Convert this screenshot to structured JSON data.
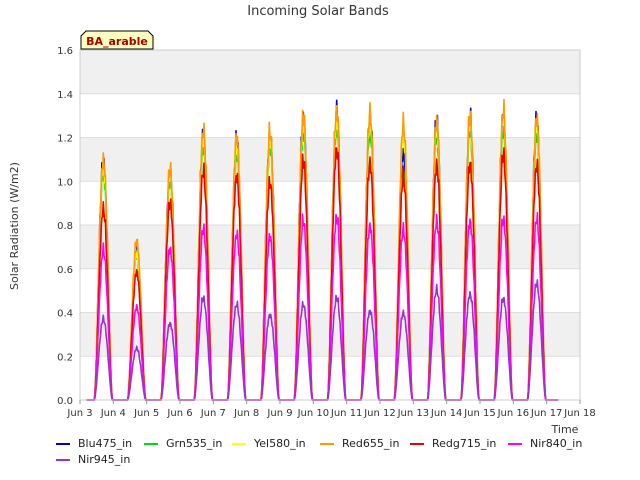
{
  "chart_data": {
    "type": "line",
    "title": "Incoming Solar Bands",
    "xlabel": "Time",
    "ylabel": "Solar Radiation (W/m2)",
    "site_label": "BA_arable",
    "xlim": [
      3,
      18
    ],
    "ylim": [
      0,
      1.6
    ],
    "x_ticks": [
      3,
      4,
      5,
      6,
      7,
      8,
      9,
      10,
      11,
      12,
      13,
      14,
      15,
      16,
      17,
      18
    ],
    "x_tick_labels": [
      "Jun 3",
      "Jun 4",
      "Jun 5",
      "Jun 6",
      "Jun 7",
      "Jun 8",
      "Jun 9",
      "Jun 10",
      "Jun 11",
      "Jun 12",
      "Jun 13",
      "Jun 14",
      "Jun 15",
      "Jun 16",
      "Jun 17",
      "Jun 18"
    ],
    "y_ticks": [
      0.0,
      0.2,
      0.4,
      0.6,
      0.8,
      1.0,
      1.2,
      1.4,
      1.6
    ],
    "y_tick_labels": [
      "0.0",
      "0.2",
      "0.4",
      "0.6",
      "0.8",
      "1.0",
      "1.2",
      "1.4",
      "1.6"
    ],
    "grid": true,
    "legend_position": "bottom",
    "day_centers": [
      3.7,
      4.7,
      5.7,
      6.7,
      7.7,
      8.7,
      9.7,
      10.7,
      11.7,
      12.7,
      13.7,
      14.7,
      15.7,
      16.7
    ],
    "series": [
      {
        "name": "Blu475_in",
        "color": "#0000cc",
        "values": [
          1.15,
          0.72,
          1.1,
          1.28,
          1.25,
          1.27,
          1.36,
          1.38,
          1.37,
          1.2,
          1.34,
          1.36,
          1.37,
          1.35
        ]
      },
      {
        "name": "Grn535_in",
        "color": "#00dd00",
        "values": [
          1.1,
          0.7,
          1.05,
          1.22,
          1.18,
          1.22,
          1.3,
          1.32,
          1.3,
          1.1,
          1.28,
          1.3,
          1.3,
          1.28
        ]
      },
      {
        "name": "Yel580_in",
        "color": "#ffff00",
        "values": [
          1.13,
          0.71,
          1.08,
          1.26,
          1.22,
          1.25,
          1.34,
          1.36,
          1.35,
          1.28,
          1.32,
          1.34,
          1.36,
          1.33
        ]
      },
      {
        "name": "Red655_in",
        "color": "#ff9900",
        "values": [
          1.16,
          0.77,
          1.11,
          1.3,
          1.27,
          1.29,
          1.37,
          1.4,
          1.38,
          1.33,
          1.35,
          1.37,
          1.39,
          1.36
        ]
      },
      {
        "name": "Redg715_in",
        "color": "#ee0000",
        "values": [
          0.92,
          0.62,
          0.95,
          1.1,
          1.08,
          1.05,
          1.15,
          1.21,
          1.14,
          1.07,
          1.13,
          1.14,
          1.18,
          1.13
        ]
      },
      {
        "name": "Nir840_in",
        "color": "#ff00ff",
        "values": [
          0.72,
          0.45,
          0.73,
          0.82,
          0.8,
          0.79,
          0.86,
          0.88,
          0.84,
          0.82,
          0.86,
          0.86,
          0.87,
          0.87
        ]
      },
      {
        "name": "Nir945_in",
        "color": "#9933cc",
        "values": [
          0.39,
          0.25,
          0.37,
          0.49,
          0.46,
          0.41,
          0.46,
          0.49,
          0.43,
          0.42,
          0.53,
          0.51,
          0.49,
          0.56
        ]
      }
    ]
  }
}
